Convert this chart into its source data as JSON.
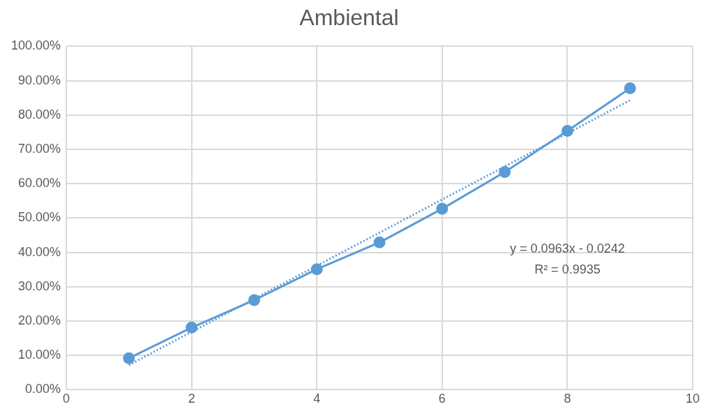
{
  "chart_data": {
    "type": "line",
    "title": "Ambiental",
    "xlim": [
      0,
      10
    ],
    "xticks": [
      0,
      2,
      4,
      6,
      8,
      10
    ],
    "ylim": [
      0,
      100
    ],
    "yticks": [
      {
        "value": 0,
        "label": "0.00%"
      },
      {
        "value": 10,
        "label": "10.00%"
      },
      {
        "value": 20,
        "label": "20.00%"
      },
      {
        "value": 30,
        "label": "30.00%"
      },
      {
        "value": 40,
        "label": "40.00%"
      },
      {
        "value": 50,
        "label": "50.00%"
      },
      {
        "value": 60,
        "label": "60.00%"
      },
      {
        "value": 70,
        "label": "70.00%"
      },
      {
        "value": 80,
        "label": "80.00%"
      },
      {
        "value": 90,
        "label": "90.00%"
      },
      {
        "value": 100,
        "label": "100.00%"
      }
    ],
    "grid": true,
    "legend": false,
    "series": [
      {
        "type": "line",
        "color": "#5b9bd5",
        "marker": "circle",
        "line_style": "solid",
        "x": [
          1,
          2,
          3,
          4,
          5,
          6,
          7,
          8,
          9
        ],
        "values": [
          9.2,
          18.1,
          26.1,
          35.1,
          42.9,
          52.7,
          63.4,
          75.4,
          87.8
        ]
      },
      {
        "type": "line",
        "color": "#5b9bd5",
        "marker": "none",
        "line_style": "dotted",
        "x": [
          1,
          9
        ],
        "values": [
          7.2,
          84.3
        ]
      }
    ],
    "annotations": [
      "y = 0.0963x - 0.0242",
      "R² = 0.9935"
    ]
  }
}
